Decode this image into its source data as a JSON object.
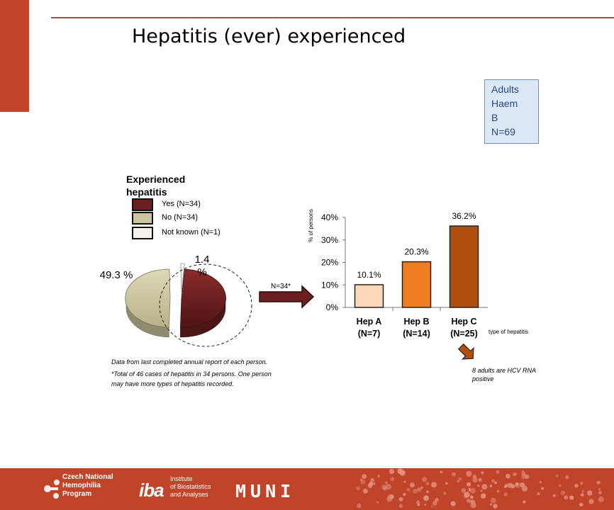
{
  "slide": {
    "title": "Hepatitis (ever) experienced",
    "group_lines": [
      "Adults",
      "Haem",
      "B",
      "N=69"
    ]
  },
  "legend": {
    "title": "Experienced hepatitis",
    "items": [
      {
        "label": "Yes (N=34)",
        "color": "#6b1f1f"
      },
      {
        "label": "No (N=34)",
        "color": "#ccc6a0"
      },
      {
        "label": "Not known (N=1)",
        "color": "#f4f2ea"
      }
    ]
  },
  "pie": {
    "labels": {
      "no": "49.3 %",
      "not_known": "1.4 %"
    }
  },
  "arrow_label": "N=34*",
  "notes": {
    "source": "Data from last completed annual report of each person.",
    "total": "*Total of 46 cases of hepatitis in 34 persons. One person may have more types of hepatitis recorded.",
    "hcv": "8 adults are HCV RNA positive"
  },
  "chart_data": [
    {
      "type": "pie",
      "categories": [
        "Yes (N=34)",
        "No (N=34)",
        "Not known (N=1)"
      ],
      "values": [
        49.3,
        49.3,
        1.4
      ],
      "colors": [
        "#6b1f1f",
        "#ccc6a0",
        "#f4f2ea"
      ],
      "slice_labels": [
        "",
        "49.3 %",
        "1.4 %"
      ],
      "legend": "top-left"
    },
    {
      "type": "bar",
      "categories": [
        "Hep A (N=7)",
        "Hep B (N=14)",
        "Hep C (N=25)"
      ],
      "category_lines": [
        [
          "Hep A",
          "(N=7)"
        ],
        [
          "Hep B",
          "(N=14)"
        ],
        [
          "Hep C",
          "(N=25)"
        ]
      ],
      "values": [
        10.1,
        20.3,
        36.2
      ],
      "data_labels": [
        "10.1%",
        "20.3%",
        "36.2%"
      ],
      "colors": [
        "#fbd8b8",
        "#f07d1f",
        "#b14f0f"
      ],
      "ylabel": "% of persons",
      "xlabel": "type of hepatitis",
      "ylim": [
        0,
        40
      ],
      "yticks": [
        "0%",
        "10%",
        "20%",
        "30%",
        "40%"
      ],
      "grid": false
    }
  ],
  "footer": {
    "org1_lines": [
      "Czech National",
      "Hemophilia",
      "Program"
    ],
    "iba_mark": "iba",
    "iba_lines": [
      "Institute",
      "of Biostatistics",
      "and Analyses"
    ],
    "muni": "MUNI"
  }
}
